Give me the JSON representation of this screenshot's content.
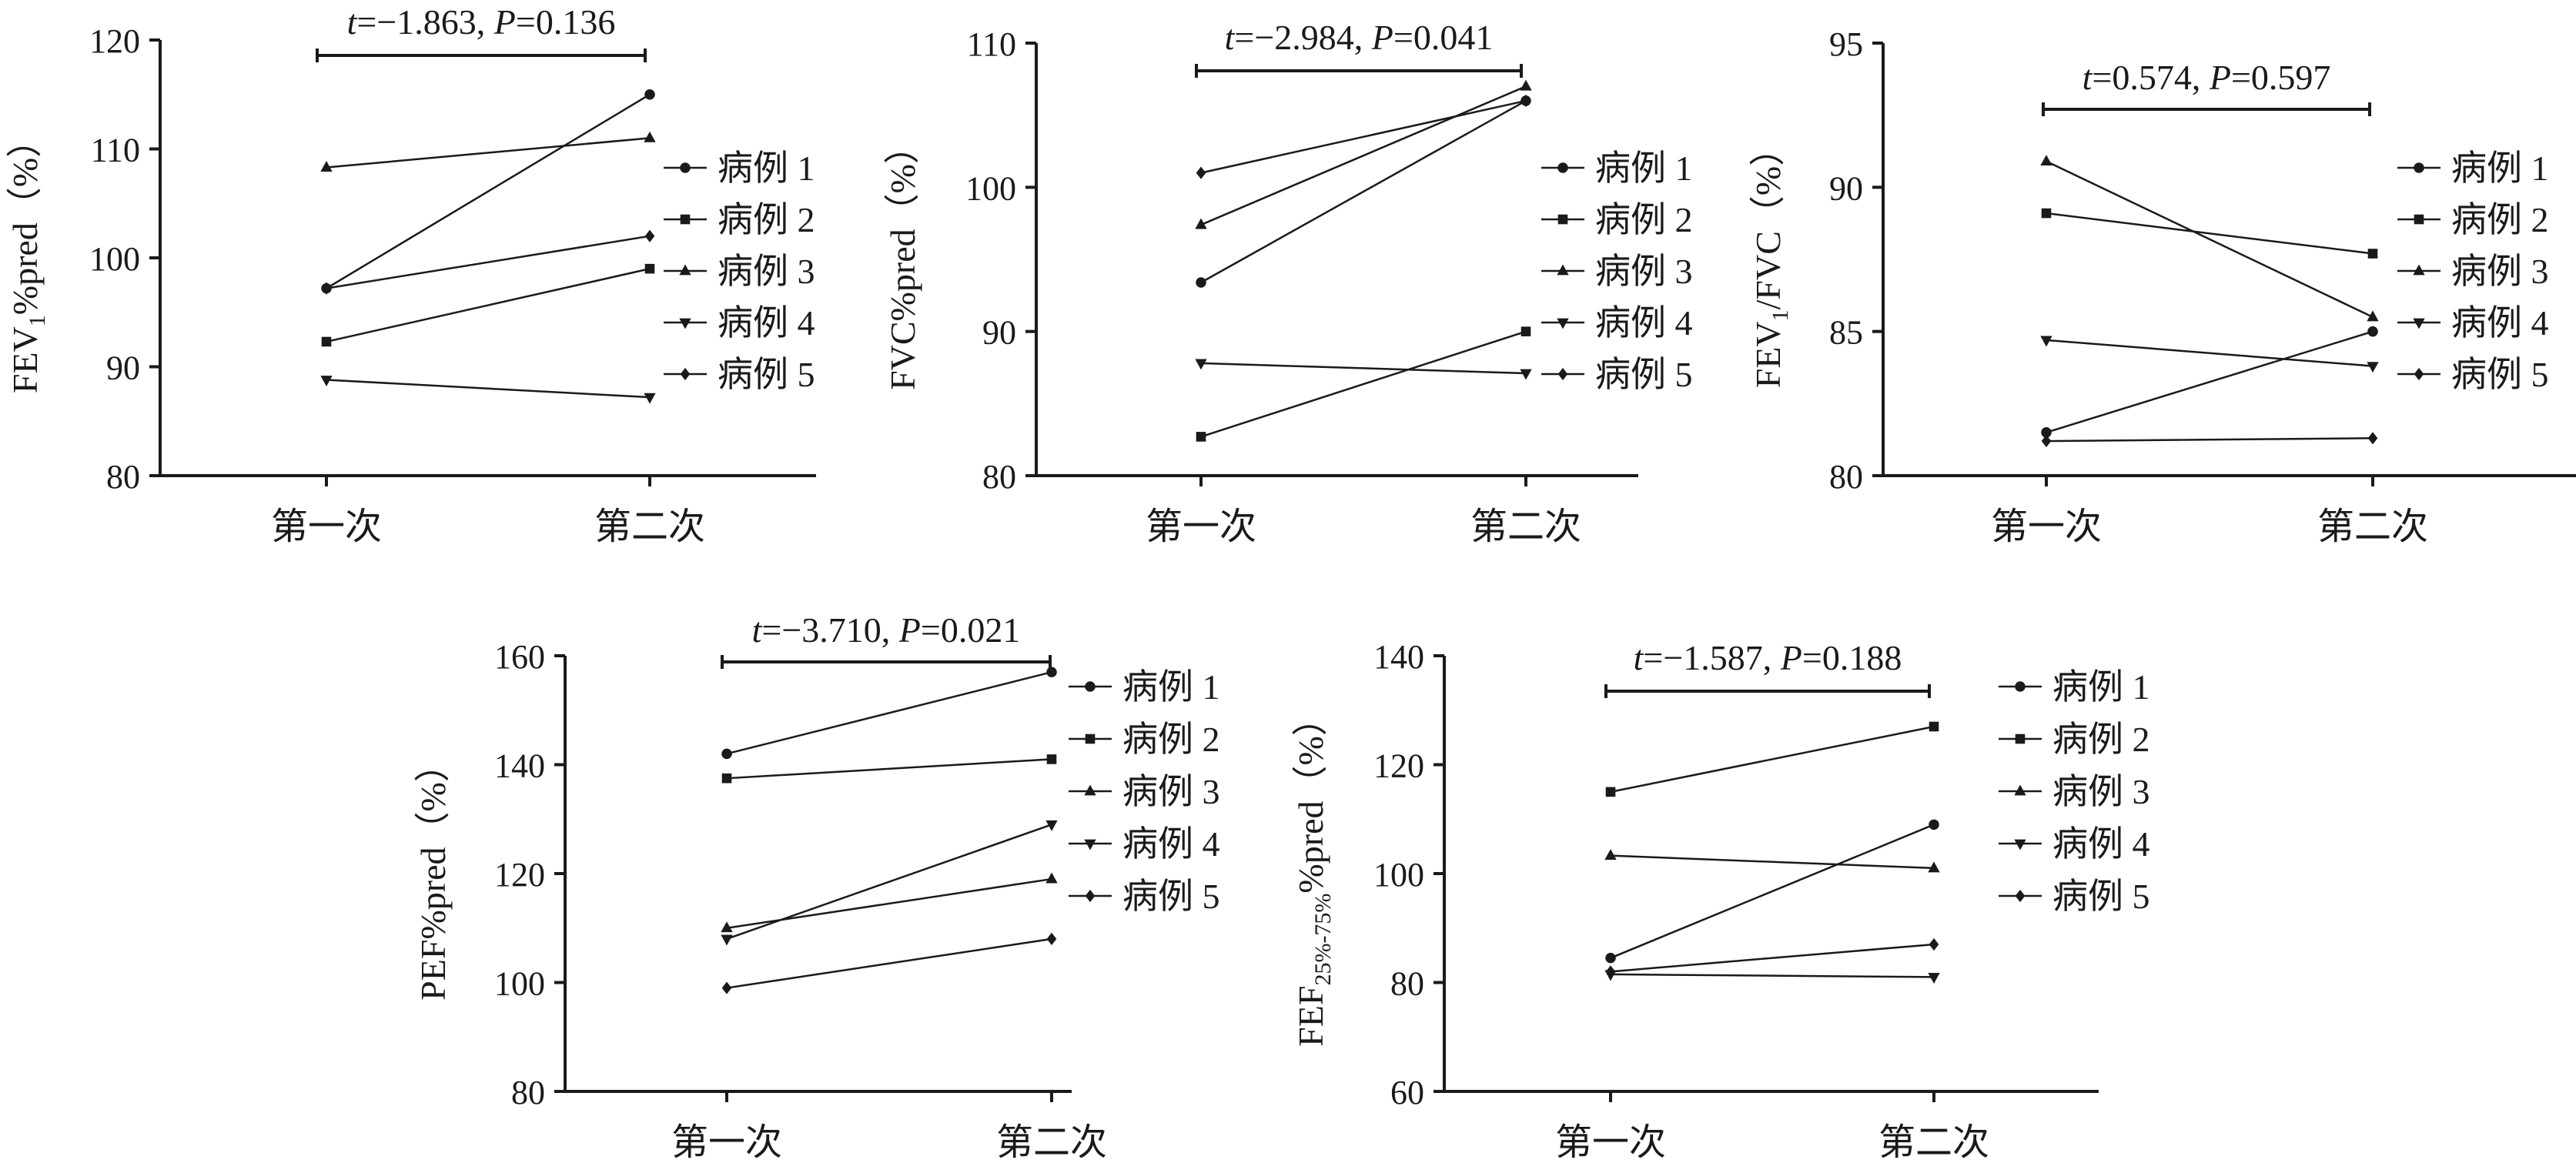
{
  "chart_data": [
    {
      "type": "line",
      "ylabel_main": "FEV",
      "ylabel_sub": "1",
      "ylabel_tail": "%pred（%）",
      "categories": [
        "第一次",
        "第二次"
      ],
      "ylim": [
        80,
        120
      ],
      "yticks": [
        "80",
        "90",
        "100",
        "110",
        "120"
      ],
      "annotation": {
        "t_label": "t",
        "t_value": "=−1.863, ",
        "p_label": "P",
        "p_value": "=0.136"
      },
      "legend": [
        "病例 1",
        "病例 2",
        "病例 3",
        "病例 4",
        "病例 5"
      ],
      "series": [
        {
          "name": "病例 1",
          "marker": "circle",
          "values": [
            97.2,
            115
          ]
        },
        {
          "name": "病例 2",
          "marker": "square",
          "values": [
            92.3,
            99
          ]
        },
        {
          "name": "病例 3",
          "marker": "triangle",
          "values": [
            108.3,
            111
          ]
        },
        {
          "name": "病例 4",
          "marker": "tri-down",
          "values": [
            88.8,
            87.2
          ]
        },
        {
          "name": "病例 5",
          "marker": "diamond",
          "values": [
            97.2,
            102
          ]
        }
      ]
    },
    {
      "type": "line",
      "ylabel_main": "FVC%pred（%）",
      "ylabel_sub": "",
      "ylabel_tail": "",
      "categories": [
        "第一次",
        "第二次"
      ],
      "ylim": [
        80,
        110
      ],
      "yticks": [
        "80",
        "90",
        "100",
        "110"
      ],
      "annotation": {
        "t_label": "t",
        "t_value": "=−2.984, ",
        "p_label": "P",
        "p_value": "=0.041"
      },
      "legend": [
        "病例 1",
        "病例 2",
        "病例 3",
        "病例 4",
        "病例 5"
      ],
      "series": [
        {
          "name": "病例 1",
          "marker": "circle",
          "values": [
            93.4,
            106
          ]
        },
        {
          "name": "病例 2",
          "marker": "square",
          "values": [
            82.7,
            90
          ]
        },
        {
          "name": "病例 3",
          "marker": "triangle",
          "values": [
            97.4,
            107
          ]
        },
        {
          "name": "病例 4",
          "marker": "tri-down",
          "values": [
            87.8,
            87.1
          ]
        },
        {
          "name": "病例 5",
          "marker": "diamond",
          "values": [
            101,
            106
          ]
        }
      ]
    },
    {
      "type": "line",
      "ylabel_main": "FEV",
      "ylabel_sub": "1",
      "ylabel_tail": "/FVC（%）",
      "categories": [
        "第一次",
        "第二次"
      ],
      "ylim": [
        80,
        95
      ],
      "yticks": [
        "80",
        "85",
        "90",
        "95"
      ],
      "annotation": {
        "t_label": "t",
        "t_value": "=0.574, ",
        "p_label": "P",
        "p_value": "=0.597"
      },
      "legend": [
        "病例 1",
        "病例 2",
        "病例 3",
        "病例 4",
        "病例 5"
      ],
      "series": [
        {
          "name": "病例 1",
          "marker": "circle",
          "values": [
            81.5,
            85
          ]
        },
        {
          "name": "病例 2",
          "marker": "square",
          "values": [
            89.1,
            87.7
          ]
        },
        {
          "name": "病例 3",
          "marker": "triangle",
          "values": [
            90.9,
            85.5
          ]
        },
        {
          "name": "病例 4",
          "marker": "tri-down",
          "values": [
            84.7,
            83.8
          ]
        },
        {
          "name": "病例 5",
          "marker": "diamond",
          "values": [
            81.2,
            81.3
          ]
        }
      ]
    },
    {
      "type": "line",
      "ylabel_main": "PEF%pred（%）",
      "ylabel_sub": "",
      "ylabel_tail": "",
      "categories": [
        "第一次",
        "第二次"
      ],
      "ylim": [
        80,
        160
      ],
      "yticks": [
        "80",
        "100",
        "120",
        "140",
        "160"
      ],
      "annotation": {
        "t_label": "t",
        "t_value": "=−3.710, ",
        "p_label": "P",
        "p_value": "=0.021"
      },
      "legend": [
        "病例 1",
        "病例 2",
        "病例 3",
        "病例 4",
        "病例 5"
      ],
      "series": [
        {
          "name": "病例 1",
          "marker": "circle",
          "values": [
            142,
            157
          ]
        },
        {
          "name": "病例 2",
          "marker": "square",
          "values": [
            137.5,
            141
          ]
        },
        {
          "name": "病例 3",
          "marker": "triangle",
          "values": [
            110,
            119
          ]
        },
        {
          "name": "病例 4",
          "marker": "tri-down",
          "values": [
            108,
            129
          ]
        },
        {
          "name": "病例 5",
          "marker": "diamond",
          "values": [
            99,
            108
          ]
        }
      ]
    },
    {
      "type": "line",
      "ylabel_main": "FEF",
      "ylabel_sub": "25%-75%",
      "ylabel_tail": "%pred（%）",
      "categories": [
        "第一次",
        "第二次"
      ],
      "ylim": [
        60,
        140
      ],
      "yticks": [
        "60",
        "80",
        "100",
        "120",
        "140"
      ],
      "annotation": {
        "t_label": "t",
        "t_value": "=−1.587, ",
        "p_label": "P",
        "p_value": "=0.188"
      },
      "legend": [
        "病例 1",
        "病例 2",
        "病例 3",
        "病例 4",
        "病例 5"
      ],
      "series": [
        {
          "name": "病例 1",
          "marker": "circle",
          "values": [
            84.5,
            109
          ]
        },
        {
          "name": "病例 2",
          "marker": "square",
          "values": [
            115,
            127
          ]
        },
        {
          "name": "病例 3",
          "marker": "triangle",
          "values": [
            103.3,
            101
          ]
        },
        {
          "name": "病例 4",
          "marker": "tri-down",
          "values": [
            81.5,
            81
          ]
        },
        {
          "name": "病例 5",
          "marker": "diamond",
          "values": [
            82,
            87
          ]
        }
      ]
    }
  ]
}
